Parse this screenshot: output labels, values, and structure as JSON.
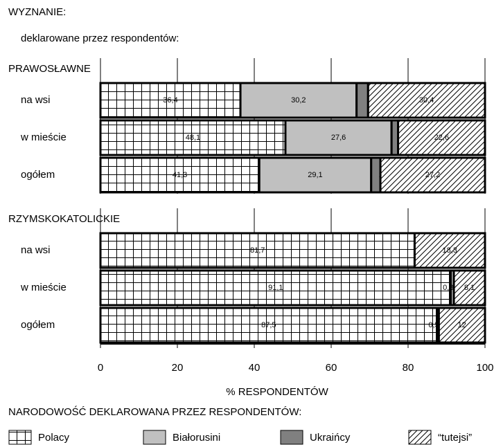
{
  "chart_data": {
    "type": "bar",
    "orientation": "horizontal",
    "stacked": true,
    "title": "WYZNANIE:",
    "subtitle": "deklarowane przez respondentów:",
    "category_groups": [
      "PRAWOSŁAWNE",
      "RZYMSKOKATOLICKIE"
    ],
    "categories": [
      "na wsi",
      "w mieście",
      "ogółem",
      "na wsi",
      "w mieście",
      "ogółem"
    ],
    "xlabel": "% RESPONDENTÓW",
    "legend_title": "NARODOWOŚĆ DEKLAROWANA PRZEZ RESPONDENTÓW:",
    "xlim": [
      0,
      100
    ],
    "xticks": [
      0,
      20,
      40,
      60,
      80,
      100
    ],
    "grid": true,
    "legend": "bottom",
    "series": [
      {
        "name": "Polacy",
        "color": "grid-pattern",
        "values": [
          36.4,
          48.1,
          41.3,
          81.7,
          91.1,
          87.5
        ],
        "value_labels": [
          "36,4",
          "48,1",
          "41,3",
          "81,7",
          "91,1",
          "87,5"
        ]
      },
      {
        "name": "Białorusini",
        "color": "#c0c0c0",
        "values": [
          30.2,
          27.6,
          29.1,
          null,
          0.8,
          0.5
        ],
        "value_labels": [
          "30,2",
          "27,6",
          "29,1",
          null,
          "0,8",
          "0,5"
        ]
      },
      {
        "name": "Ukraińcy",
        "color": "#808080",
        "values": [
          3,
          1.7,
          2.4,
          null,
          null,
          null
        ],
        "value_labels": [
          "3",
          "1,7",
          "2,4",
          null,
          null,
          null
        ]
      },
      {
        "name": "“tutejsi”",
        "color": "hatch-pattern",
        "values": [
          30.4,
          22.6,
          27.2,
          18.3,
          8.1,
          12
        ],
        "value_labels": [
          "30,4",
          "22,6",
          "27,2",
          "18,3",
          "8,1",
          "12"
        ]
      }
    ]
  }
}
